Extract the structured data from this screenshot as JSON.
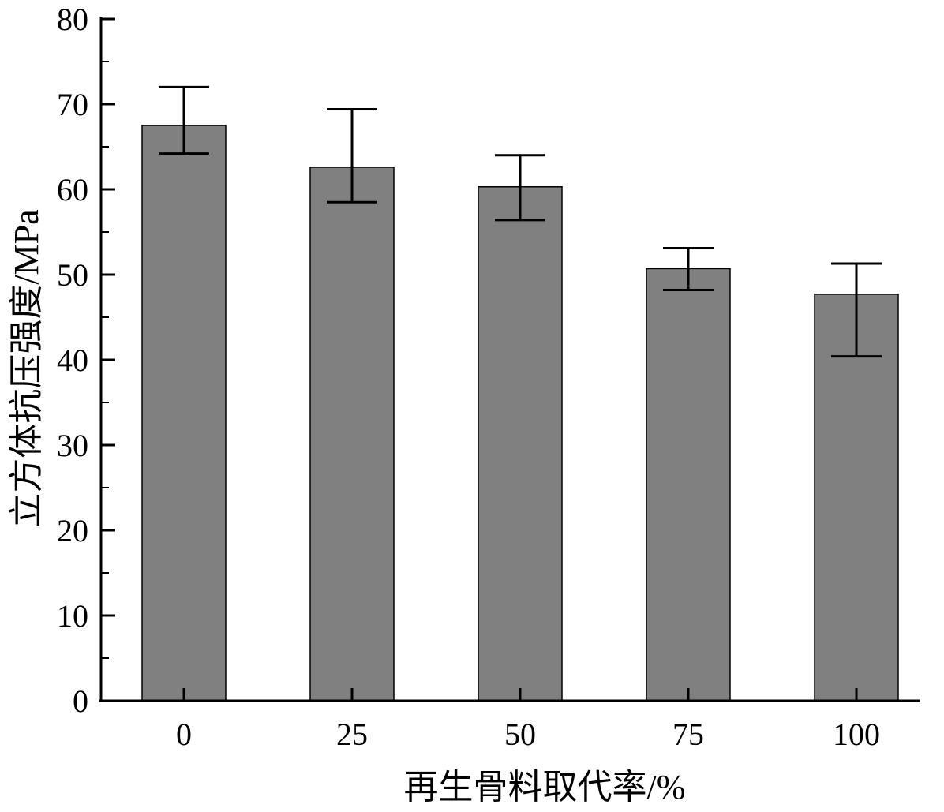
{
  "chart_data": {
    "type": "bar",
    "title": "",
    "xlabel": "再生骨料取代率/%",
    "ylabel": "立方体抗压强度/MPa",
    "categories": [
      "0",
      "25",
      "50",
      "75",
      "100"
    ],
    "values": [
      67.5,
      62.6,
      60.3,
      50.7,
      47.7
    ],
    "error_high": [
      72.0,
      69.4,
      64.0,
      53.1,
      51.3
    ],
    "error_low": [
      64.2,
      58.5,
      56.4,
      48.2,
      40.4
    ],
    "ylim": [
      0,
      80
    ],
    "yticks": [
      "0",
      "10",
      "20",
      "30",
      "40",
      "50",
      "60",
      "70",
      "80"
    ],
    "grid": false,
    "colors": {
      "bar_fill": "#808080",
      "bar_stroke": "#000000",
      "axis": "#000000"
    }
  }
}
